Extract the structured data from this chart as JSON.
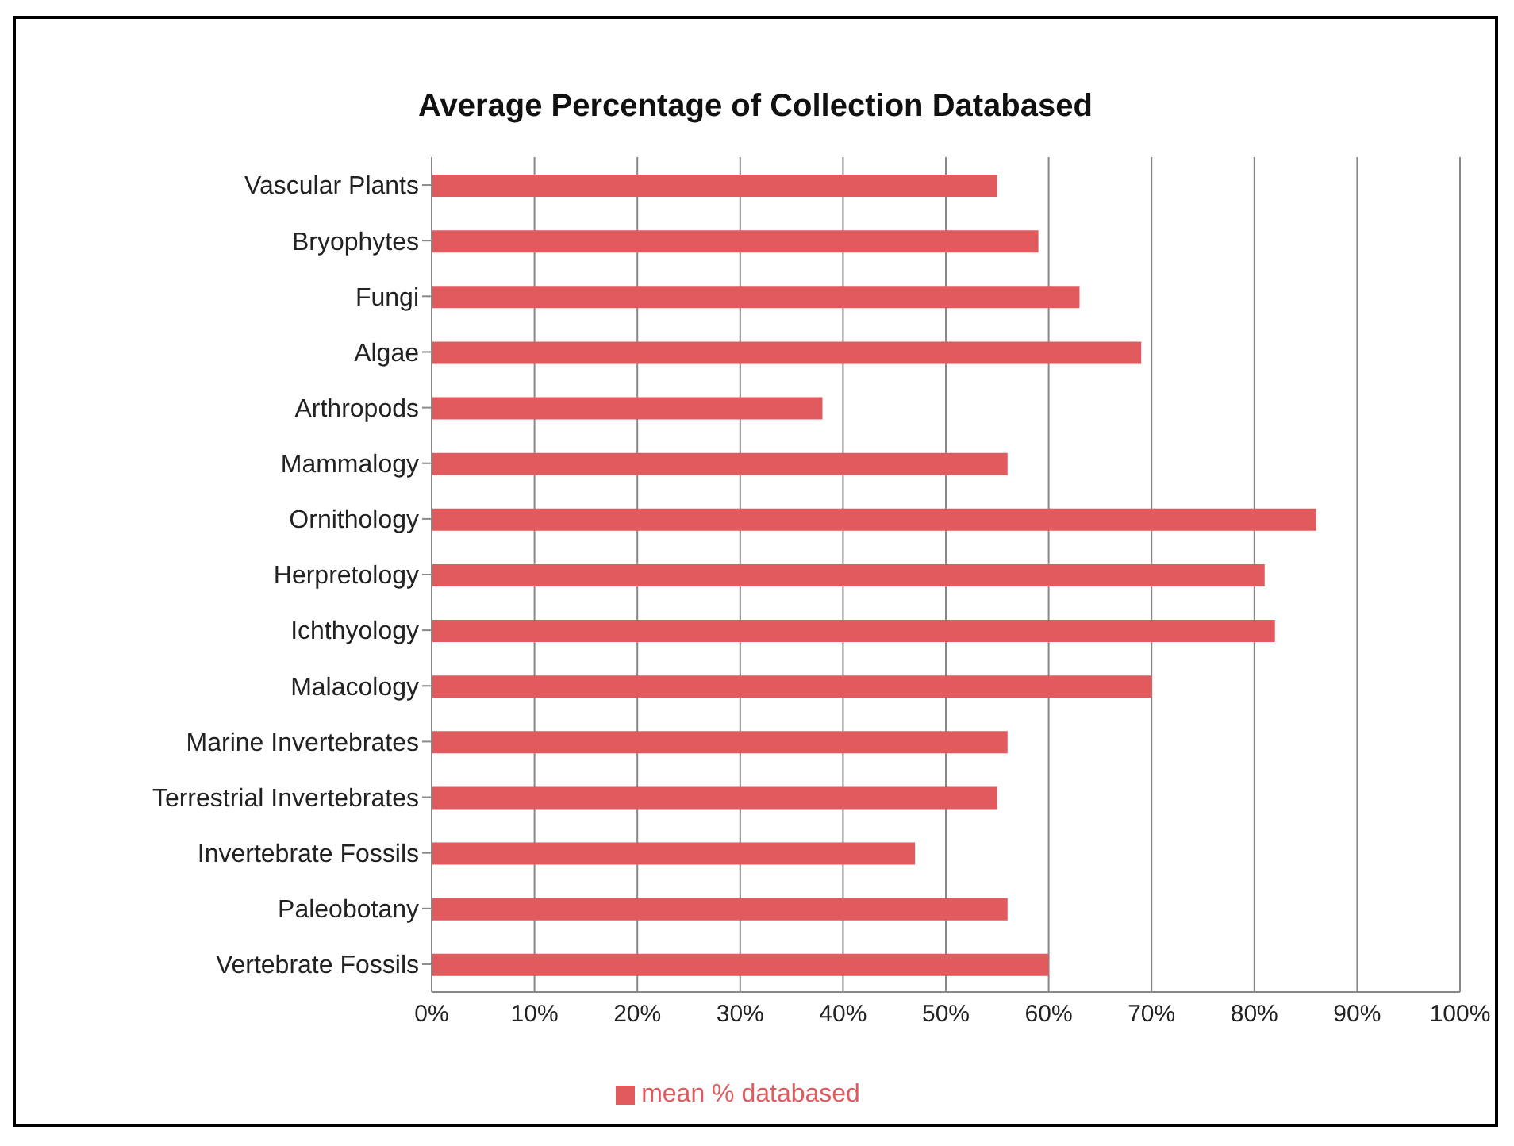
{
  "chart_data": {
    "type": "bar",
    "orientation": "horizontal",
    "title": "Average Percentage of Collection Databased",
    "categories": [
      "Vascular Plants",
      "Bryophytes",
      "Fungi",
      "Algae",
      "Arthropods",
      "Mammalogy",
      "Ornithology",
      "Herpretology",
      "Ichthyology",
      "Malacology",
      "Marine Invertebrates",
      "Terrestrial Invertebrates",
      "Invertebrate Fossils",
      "Paleobotany",
      "Vertebrate Fossils"
    ],
    "series": [
      {
        "name": "mean % databased",
        "color": "#e05a5e",
        "values": [
          55,
          59,
          63,
          69,
          38,
          56,
          86,
          81,
          82,
          70,
          56,
          55,
          47,
          56,
          60
        ]
      }
    ],
    "xlim": [
      0,
      100
    ],
    "xticks": [
      {
        "value": 0,
        "label": "0%"
      },
      {
        "value": 10,
        "label": "10%"
      },
      {
        "value": 20,
        "label": "20%"
      },
      {
        "value": 30,
        "label": "30%"
      },
      {
        "value": 40,
        "label": "40%"
      },
      {
        "value": 50,
        "label": "50%"
      },
      {
        "value": 60,
        "label": "60%"
      },
      {
        "value": 70,
        "label": "70%"
      },
      {
        "value": 80,
        "label": "80%"
      },
      {
        "value": 90,
        "label": "90%"
      },
      {
        "value": 100,
        "label": "100%"
      }
    ],
    "grid": "x",
    "legend": "bottom"
  }
}
